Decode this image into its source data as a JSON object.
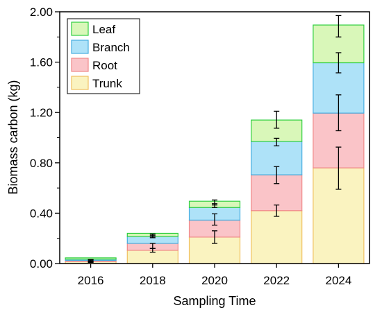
{
  "chart_data": {
    "type": "bar",
    "stacked": true,
    "xlabel": "Sampling Time",
    "ylabel": "Biomass carbon (kg)",
    "ylim": [
      0,
      2.0
    ],
    "yticks": [
      "0.00",
      "0.40",
      "0.80",
      "1.20",
      "1.60",
      "2.00"
    ],
    "grid": false,
    "legend_position": "top-left",
    "categories": [
      "2016",
      "2018",
      "2020",
      "2022",
      "2024"
    ],
    "series": [
      {
        "name": "Trunk",
        "fill": "#faf3c0",
        "stroke": "#f0c060",
        "values": [
          0.015,
          0.105,
          0.21,
          0.42,
          0.76
        ],
        "err_low": [
          0.012,
          0.09,
          0.16,
          0.375,
          0.59
        ],
        "err_high": [
          0.018,
          0.12,
          0.26,
          0.465,
          0.925
        ]
      },
      {
        "name": "Root",
        "fill": "#fac4c8",
        "stroke": "#f08888",
        "values": [
          0.01,
          0.055,
          0.135,
          0.285,
          0.435
        ],
        "err_low": [
          0.009,
          0.12,
          0.305,
          0.635,
          1.055
        ],
        "err_high": [
          0.013,
          0.16,
          0.395,
          0.77,
          1.34
        ]
      },
      {
        "name": "Branch",
        "fill": "#aee2f8",
        "stroke": "#46aee0",
        "values": [
          0.01,
          0.055,
          0.1,
          0.265,
          0.4
        ],
        "err_low": [
          0.027,
          0.205,
          0.445,
          0.935,
          1.515
        ],
        "err_high": [
          0.032,
          0.225,
          0.475,
          0.995,
          1.675
        ]
      },
      {
        "name": "Leaf",
        "fill": "#d9f7b9",
        "stroke": "#2fcf3f",
        "values": [
          0.01,
          0.025,
          0.05,
          0.17,
          0.3
        ],
        "err_low": [
          0.02,
          0.215,
          0.465,
          1.075,
          1.8
        ],
        "err_high": [
          0.03,
          0.235,
          0.505,
          1.21,
          1.97
        ]
      }
    ]
  }
}
